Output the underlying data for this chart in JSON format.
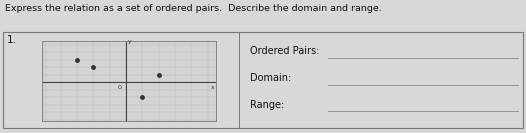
{
  "title": "Express the relation as a set of ordered pairs.  Describe the domain and range.",
  "problem_number": "1.",
  "grid_xlim": [
    -5,
    5
  ],
  "grid_ylim": [
    -5,
    5
  ],
  "points": [
    [
      -3,
      3
    ],
    [
      -2,
      2
    ],
    [
      2,
      1
    ],
    [
      1,
      -2
    ]
  ],
  "point_color": "#333333",
  "point_size": 3.5,
  "grid_color": "#bbbbbb",
  "axis_color": "#444444",
  "graph_bg_color": "#d4d4d4",
  "figure_bg_color": "#d8d8d8",
  "right_panel_bg": "#d8d8d8",
  "label_texts": [
    "Ordered Pairs:",
    "Domain:",
    "Range:"
  ],
  "font_size_title": 6.8,
  "font_size_labels": 7.0,
  "font_size_number": 7.5,
  "border_color": "#777777",
  "line_color": "#888888"
}
